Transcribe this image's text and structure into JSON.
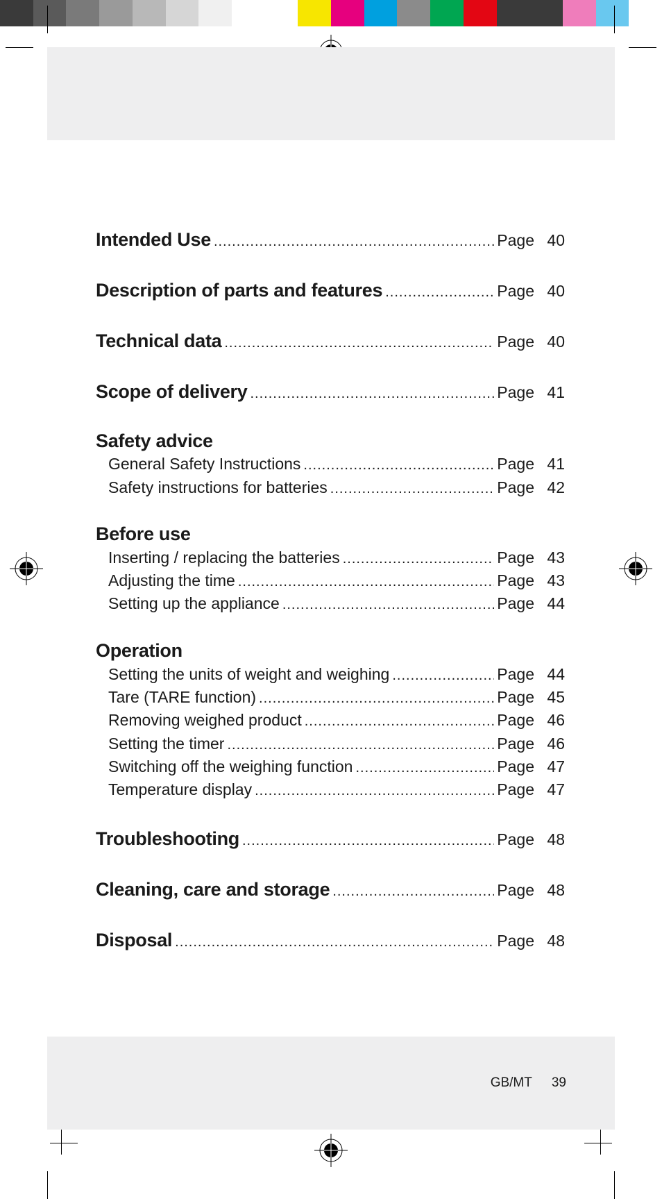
{
  "colorbar": [
    "#3a3a3a",
    "#5a5a5a",
    "#7a7a7a",
    "#9a9a9a",
    "#b8b8b8",
    "#d6d6d6",
    "#f0f0f0",
    "#ffffff",
    "#ffffff",
    "#f7e600",
    "#e6007e",
    "#00a0df",
    "#8b8b8b",
    "#00a651",
    "#e30613",
    "#3a3a3a",
    "#3a3a3a",
    "#ef7dbb",
    "#69c8ef",
    "#ffffff"
  ],
  "pageLabel": "Page",
  "footer": {
    "lang": "GB/MT",
    "pageNum": "39"
  },
  "toc": [
    {
      "type": "main",
      "title": "Intended Use",
      "page": "40"
    },
    {
      "type": "main",
      "title": "Description of parts and features",
      "page": "40"
    },
    {
      "type": "main",
      "title": "Technical data",
      "page": "40"
    },
    {
      "type": "main",
      "title": "Scope of delivery",
      "page": "41"
    },
    {
      "type": "heading",
      "title": "Safety advice",
      "subs": [
        {
          "title": "General Safety Instructions",
          "page": "41"
        },
        {
          "title": "Safety instructions for batteries",
          "page": "42"
        }
      ]
    },
    {
      "type": "heading",
      "title": "Before use",
      "subs": [
        {
          "title": "Inserting / replacing the batteries",
          "page": "43"
        },
        {
          "title": "Adjusting the time",
          "page": "43"
        },
        {
          "title": "Setting up the appliance",
          "page": "44"
        }
      ]
    },
    {
      "type": "heading",
      "title": "Operation",
      "subs": [
        {
          "title": "Setting the units of weight and weighing",
          "page": "44"
        },
        {
          "title": "Tare (TARE function)",
          "page": "45"
        },
        {
          "title": "Removing weighed product",
          "page": "46"
        },
        {
          "title": "Setting the timer",
          "page": "46"
        },
        {
          "title": "Switching off the weighing function",
          "page": "47"
        },
        {
          "title": "Temperature display",
          "page": "47"
        }
      ]
    },
    {
      "type": "main",
      "title": "Troubleshooting",
      "page": "48"
    },
    {
      "type": "main",
      "title": "Cleaning, care and storage",
      "page": "48"
    },
    {
      "type": "main",
      "title": "Disposal",
      "page": "48"
    }
  ]
}
